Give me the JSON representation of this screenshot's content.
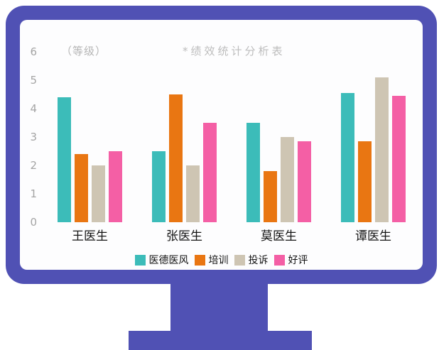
{
  "monitor": {
    "frame_color": "#5051b4",
    "screen_color": "#fdfdfe"
  },
  "chart_data": {
    "type": "bar",
    "title": "*绩效统计分析表",
    "y_axis_label": "（等级）",
    "categories": [
      "王医生",
      "张医生",
      "莫医生",
      "谭医生"
    ],
    "series": [
      {
        "name": "医德医风",
        "color": "#3cbcb9",
        "values": [
          4.4,
          2.5,
          3.5,
          4.55
        ]
      },
      {
        "name": "培训",
        "color": "#e97612",
        "values": [
          2.4,
          4.5,
          1.8,
          2.85
        ]
      },
      {
        "name": "投诉",
        "color": "#cec5b3",
        "values": [
          2.0,
          2.0,
          3.0,
          5.1
        ]
      },
      {
        "name": "好评",
        "color": "#f45fa5",
        "values": [
          2.5,
          3.5,
          2.85,
          4.45
        ]
      }
    ],
    "ylim": [
      0,
      6
    ],
    "y_ticks": [
      0,
      1,
      2,
      3,
      4,
      5,
      6
    ],
    "grid": false,
    "axis_lines": false,
    "legend_position": "bottom",
    "text_colors": {
      "ticks": "#a4a4a4",
      "title": "#bdbdbd",
      "axis_label": "#b5b5b5",
      "category": "#141414",
      "legend": "#111111"
    }
  }
}
